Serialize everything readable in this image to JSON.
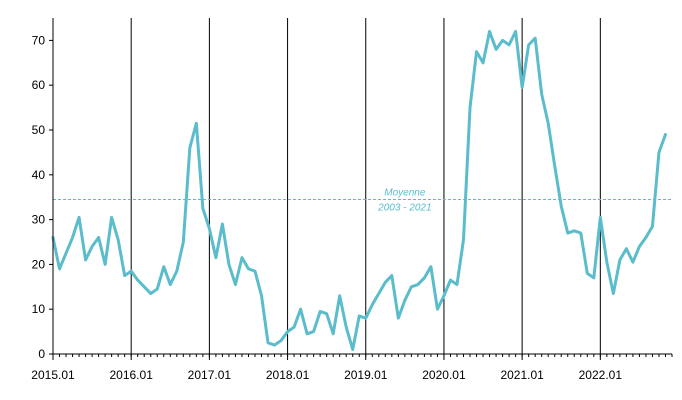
{
  "chart_data": {
    "type": "line",
    "title": "",
    "xlabel": "",
    "ylabel": "",
    "ylim": [
      0,
      75
    ],
    "yticks": [
      0,
      10,
      20,
      30,
      40,
      50,
      60,
      70
    ],
    "xlim": [
      "2015-01",
      "2022-12"
    ],
    "x_tick_labels": [
      "2015.01",
      "2016.01",
      "2017.01",
      "2018.01",
      "2019.01",
      "2020.01",
      "2021.01",
      "2022.01"
    ],
    "year_divider_dates": [
      "2016-01",
      "2017-01",
      "2018-01",
      "2019-01",
      "2020-01",
      "2021-01",
      "2022-01"
    ],
    "grid": false,
    "legend": "none",
    "colors": {
      "series": "#5bbccc",
      "average_line": "#5bbccc",
      "dividers": "#000000",
      "axes": "#000000"
    },
    "average_line": {
      "value": 34.5,
      "label_line1": "Moyenne",
      "label_line2": "2003 - 2021",
      "style": "dashed"
    },
    "series": [
      {
        "x": [
          "2015-01",
          "2015-02",
          "2015-03",
          "2015-04",
          "2015-05",
          "2015-06",
          "2015-07",
          "2015-08",
          "2015-09",
          "2015-10",
          "2015-11",
          "2015-12",
          "2016-01",
          "2016-02",
          "2016-03",
          "2016-04",
          "2016-05",
          "2016-06",
          "2016-07",
          "2016-08",
          "2016-09",
          "2016-10",
          "2016-11",
          "2016-12",
          "2017-01",
          "2017-02",
          "2017-03",
          "2017-04",
          "2017-05",
          "2017-06",
          "2017-07",
          "2017-08",
          "2017-09",
          "2017-10",
          "2017-11",
          "2017-12",
          "2018-01",
          "2018-02",
          "2018-03",
          "2018-04",
          "2018-05",
          "2018-06",
          "2018-07",
          "2018-08",
          "2018-09",
          "2018-10",
          "2018-11",
          "2018-12",
          "2019-01",
          "2019-02",
          "2019-03",
          "2019-04",
          "2019-05",
          "2019-06",
          "2019-07",
          "2019-08",
          "2019-09",
          "2019-10",
          "2019-11",
          "2019-12",
          "2020-01",
          "2020-02",
          "2020-03",
          "2020-04",
          "2020-05",
          "2020-06",
          "2020-07",
          "2020-08",
          "2020-09",
          "2020-10",
          "2020-11",
          "2020-12",
          "2021-01",
          "2021-02",
          "2021-03",
          "2021-04",
          "2021-05",
          "2021-06",
          "2021-07",
          "2021-08",
          "2021-09",
          "2021-10",
          "2021-11",
          "2021-12",
          "2022-01",
          "2022-02",
          "2022-03",
          "2022-04",
          "2022-05",
          "2022-06",
          "2022-07",
          "2022-08",
          "2022-09",
          "2022-10",
          "2022-11"
        ],
        "values": [
          26,
          19,
          22.5,
          26,
          30.5,
          21,
          24,
          26,
          20,
          30.5,
          25.5,
          17.5,
          18.5,
          16.5,
          15,
          13.5,
          14.5,
          19.5,
          15.5,
          18.5,
          25,
          46,
          51.5,
          32.5,
          28,
          21.5,
          29,
          20,
          15.5,
          21.5,
          19,
          18.5,
          13,
          2.5,
          2,
          3,
          5,
          6,
          10,
          4.5,
          5,
          9.5,
          9,
          4.5,
          13,
          6,
          1,
          8.5,
          8,
          11,
          13.5,
          16,
          17.5,
          8,
          12,
          15,
          15.5,
          17,
          19.5,
          10,
          13,
          16.5,
          15.5,
          25.5,
          55,
          67.5,
          65,
          72,
          68,
          70,
          69,
          72,
          59.5,
          69,
          70.5,
          58,
          51.5,
          42,
          33,
          27,
          27.5,
          27,
          18,
          17,
          30.5,
          20.5,
          13.5,
          21,
          23.5,
          20.5,
          24,
          26,
          28.5,
          45,
          49
        ]
      }
    ]
  }
}
